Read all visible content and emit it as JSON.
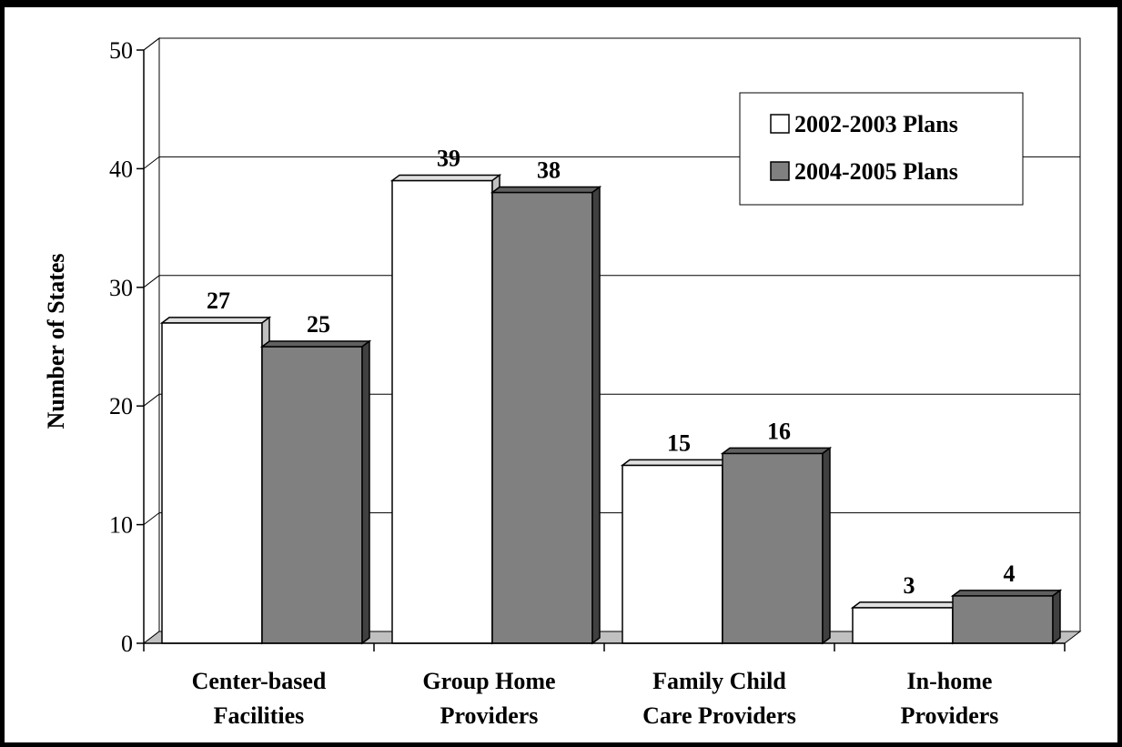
{
  "chart_data": {
    "type": "bar",
    "ylabel": "Number of States",
    "ylim": [
      0,
      50
    ],
    "yticks": [
      0,
      10,
      20,
      30,
      40,
      50
    ],
    "categories": [
      [
        "Center-based",
        "Facilities"
      ],
      [
        "Group Home",
        "Providers"
      ],
      [
        "Family Child",
        "Care Providers"
      ],
      [
        "In-home",
        "Providers"
      ]
    ],
    "series": [
      {
        "name": "2002-2003 Plans",
        "color": "#ffffff",
        "values": [
          27,
          39,
          15,
          3
        ]
      },
      {
        "name": "2004-2005 Plans",
        "color": "#808080",
        "values": [
          25,
          38,
          16,
          4
        ]
      }
    ],
    "grid": true,
    "legend": "top-right"
  }
}
